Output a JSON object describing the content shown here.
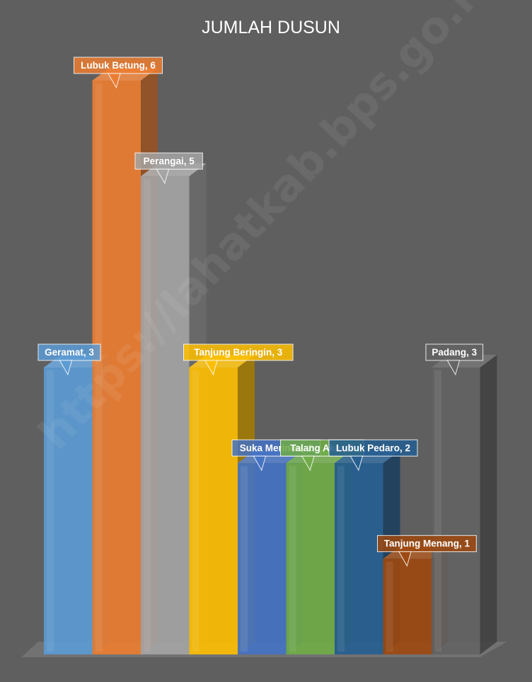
{
  "chart_data": {
    "type": "bar",
    "title": "JUMLAH DUSUN",
    "categories": [
      "Geramat",
      "Lubuk Betung",
      "Perangai",
      "Tanjung Beringin",
      "Suka Merindu",
      "Talang Akar",
      "Lubuk Pedaro",
      "Tanjung Menang",
      "Padang"
    ],
    "values": [
      3,
      6,
      5,
      3,
      2,
      2,
      2,
      1,
      3
    ],
    "data_labels": [
      "Geramat, 3",
      "Lubuk Betung, 6",
      "Perangai, 5",
      "Tanjung Beringin, 3",
      "Suka Merindu, 2",
      "Talang Akar, 2",
      "Lubuk Pedaro, 2",
      "Tanjung Menang, 1",
      "Padang, 3"
    ],
    "colors": [
      "#5b9bd5",
      "#ed7d31",
      "#a5a5a5",
      "#ffc000",
      "#4472c4",
      "#70ad47",
      "#255e91",
      "#9e480e",
      "#636363"
    ],
    "ylim": [
      0,
      6
    ],
    "grid": false,
    "legend": "none",
    "style": "3d-column"
  },
  "watermark": "https://lahatkab.bps.go.id"
}
